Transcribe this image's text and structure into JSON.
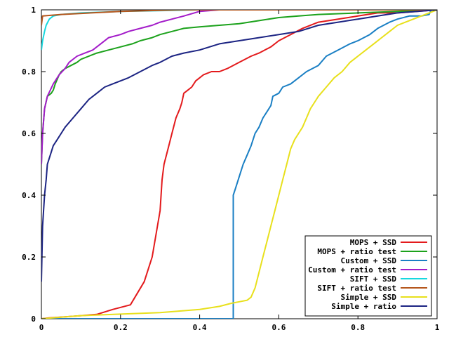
{
  "chart_data": {
    "type": "line",
    "title": "",
    "xlabel": "",
    "ylabel": "",
    "xlim": [
      0,
      1
    ],
    "ylim": [
      0,
      1
    ],
    "grid": false,
    "legend_position": "bottom-right",
    "x_ticks": [
      0,
      0.2,
      0.4,
      0.6,
      0.8,
      1
    ],
    "x_tick_labels": [
      "0",
      "0.2",
      "0.4",
      "0.6",
      "0.8",
      "1"
    ],
    "y_ticks": [
      0,
      0.2,
      0.4,
      0.6,
      0.8,
      1
    ],
    "y_tick_labels": [
      "0",
      "0.2",
      "0.4",
      "0.6",
      "0.8",
      "1"
    ],
    "series": [
      {
        "name": "MOPS + SSD",
        "color": "#e31a1c",
        "points": [
          [
            0,
            0
          ],
          [
            0.02,
            0.003
          ],
          [
            0.08,
            0.008
          ],
          [
            0.14,
            0.014
          ],
          [
            0.18,
            0.03
          ],
          [
            0.225,
            0.045
          ],
          [
            0.26,
            0.12
          ],
          [
            0.28,
            0.2
          ],
          [
            0.3,
            0.35
          ],
          [
            0.305,
            0.45
          ],
          [
            0.31,
            0.5
          ],
          [
            0.32,
            0.55
          ],
          [
            0.33,
            0.6
          ],
          [
            0.34,
            0.65
          ],
          [
            0.35,
            0.68
          ],
          [
            0.355,
            0.7
          ],
          [
            0.36,
            0.73
          ],
          [
            0.37,
            0.74
          ],
          [
            0.38,
            0.75
          ],
          [
            0.39,
            0.77
          ],
          [
            0.4,
            0.78
          ],
          [
            0.41,
            0.79
          ],
          [
            0.43,
            0.8
          ],
          [
            0.45,
            0.8
          ],
          [
            0.47,
            0.81
          ],
          [
            0.5,
            0.83
          ],
          [
            0.53,
            0.85
          ],
          [
            0.55,
            0.86
          ],
          [
            0.58,
            0.88
          ],
          [
            0.6,
            0.9
          ],
          [
            0.63,
            0.92
          ],
          [
            0.66,
            0.94
          ],
          [
            0.7,
            0.96
          ],
          [
            0.75,
            0.97
          ],
          [
            0.8,
            0.98
          ],
          [
            0.85,
            0.99
          ],
          [
            0.9,
            0.99
          ],
          [
            0.95,
            0.995
          ],
          [
            1,
            1
          ]
        ]
      },
      {
        "name": "MOPS + ratio test",
        "color": "#1ca21c",
        "points": [
          [
            0,
            0.5
          ],
          [
            0.003,
            0.6
          ],
          [
            0.008,
            0.68
          ],
          [
            0.015,
            0.72
          ],
          [
            0.025,
            0.73
          ],
          [
            0.03,
            0.74
          ],
          [
            0.035,
            0.76
          ],
          [
            0.045,
            0.79
          ],
          [
            0.05,
            0.8
          ],
          [
            0.06,
            0.81
          ],
          [
            0.075,
            0.82
          ],
          [
            0.09,
            0.83
          ],
          [
            0.1,
            0.84
          ],
          [
            0.12,
            0.85
          ],
          [
            0.14,
            0.86
          ],
          [
            0.17,
            0.87
          ],
          [
            0.2,
            0.88
          ],
          [
            0.23,
            0.89
          ],
          [
            0.25,
            0.9
          ],
          [
            0.28,
            0.91
          ],
          [
            0.3,
            0.92
          ],
          [
            0.33,
            0.93
          ],
          [
            0.36,
            0.94
          ],
          [
            0.4,
            0.945
          ],
          [
            0.45,
            0.95
          ],
          [
            0.5,
            0.955
          ],
          [
            0.55,
            0.965
          ],
          [
            0.6,
            0.975
          ],
          [
            0.65,
            0.98
          ],
          [
            0.7,
            0.985
          ],
          [
            0.8,
            0.99
          ],
          [
            0.9,
            0.995
          ],
          [
            1,
            1
          ]
        ]
      },
      {
        "name": "Custom + SSD",
        "color": "#1a7fc4",
        "points": [
          [
            0,
            0
          ],
          [
            0.47,
            0
          ],
          [
            0.485,
            0
          ],
          [
            0.485,
            0.4
          ],
          [
            0.49,
            0.42
          ],
          [
            0.5,
            0.46
          ],
          [
            0.51,
            0.5
          ],
          [
            0.52,
            0.53
          ],
          [
            0.53,
            0.56
          ],
          [
            0.54,
            0.6
          ],
          [
            0.55,
            0.62
          ],
          [
            0.56,
            0.65
          ],
          [
            0.57,
            0.67
          ],
          [
            0.58,
            0.69
          ],
          [
            0.585,
            0.72
          ],
          [
            0.6,
            0.73
          ],
          [
            0.61,
            0.75
          ],
          [
            0.63,
            0.76
          ],
          [
            0.65,
            0.78
          ],
          [
            0.67,
            0.8
          ],
          [
            0.7,
            0.82
          ],
          [
            0.72,
            0.85
          ],
          [
            0.75,
            0.87
          ],
          [
            0.78,
            0.89
          ],
          [
            0.8,
            0.9
          ],
          [
            0.83,
            0.92
          ],
          [
            0.85,
            0.94
          ],
          [
            0.88,
            0.96
          ],
          [
            0.9,
            0.97
          ],
          [
            0.93,
            0.98
          ],
          [
            0.96,
            0.98
          ],
          [
            0.98,
            0.985
          ],
          [
            0.985,
            1
          ],
          [
            1,
            1
          ]
        ]
      },
      {
        "name": "Custom + ratio test",
        "color": "#a31cc9",
        "points": [
          [
            0,
            0.5
          ],
          [
            0.003,
            0.6
          ],
          [
            0.008,
            0.68
          ],
          [
            0.015,
            0.72
          ],
          [
            0.03,
            0.76
          ],
          [
            0.045,
            0.79
          ],
          [
            0.06,
            0.81
          ],
          [
            0.07,
            0.83
          ],
          [
            0.09,
            0.85
          ],
          [
            0.11,
            0.86
          ],
          [
            0.13,
            0.87
          ],
          [
            0.15,
            0.89
          ],
          [
            0.17,
            0.91
          ],
          [
            0.2,
            0.92
          ],
          [
            0.22,
            0.93
          ],
          [
            0.25,
            0.94
          ],
          [
            0.28,
            0.95
          ],
          [
            0.3,
            0.96
          ],
          [
            0.33,
            0.97
          ],
          [
            0.36,
            0.98
          ],
          [
            0.4,
            0.995
          ],
          [
            0.45,
            1
          ],
          [
            1,
            1
          ]
        ]
      },
      {
        "name": "SIFT + SSD",
        "color": "#17d8df",
        "points": [
          [
            0,
            0.87
          ],
          [
            0.003,
            0.9
          ],
          [
            0.008,
            0.93
          ],
          [
            0.012,
            0.95
          ],
          [
            0.02,
            0.97
          ],
          [
            0.03,
            0.98
          ],
          [
            0.05,
            0.985
          ],
          [
            0.1,
            0.99
          ],
          [
            0.2,
            0.995
          ],
          [
            0.4,
            1
          ],
          [
            1,
            1
          ]
        ]
      },
      {
        "name": "SIFT + ratio test",
        "color": "#b5561c",
        "points": [
          [
            0,
            0.95
          ],
          [
            0.003,
            0.98
          ],
          [
            0.05,
            0.985
          ],
          [
            0.2,
            0.995
          ],
          [
            0.35,
            1
          ],
          [
            1,
            1
          ]
        ]
      },
      {
        "name": "Simple + SSD",
        "color": "#e8e01c",
        "points": [
          [
            0,
            0
          ],
          [
            0.05,
            0.005
          ],
          [
            0.1,
            0.01
          ],
          [
            0.2,
            0.015
          ],
          [
            0.3,
            0.02
          ],
          [
            0.35,
            0.025
          ],
          [
            0.4,
            0.03
          ],
          [
            0.45,
            0.04
          ],
          [
            0.48,
            0.05
          ],
          [
            0.5,
            0.055
          ],
          [
            0.52,
            0.06
          ],
          [
            0.53,
            0.07
          ],
          [
            0.54,
            0.1
          ],
          [
            0.55,
            0.15
          ],
          [
            0.56,
            0.2
          ],
          [
            0.57,
            0.25
          ],
          [
            0.58,
            0.3
          ],
          [
            0.59,
            0.35
          ],
          [
            0.6,
            0.4
          ],
          [
            0.61,
            0.45
          ],
          [
            0.62,
            0.5
          ],
          [
            0.63,
            0.55
          ],
          [
            0.64,
            0.58
          ],
          [
            0.65,
            0.6
          ],
          [
            0.66,
            0.62
          ],
          [
            0.67,
            0.65
          ],
          [
            0.68,
            0.68
          ],
          [
            0.69,
            0.7
          ],
          [
            0.7,
            0.72
          ],
          [
            0.72,
            0.75
          ],
          [
            0.74,
            0.78
          ],
          [
            0.76,
            0.8
          ],
          [
            0.78,
            0.83
          ],
          [
            0.8,
            0.85
          ],
          [
            0.82,
            0.87
          ],
          [
            0.84,
            0.89
          ],
          [
            0.86,
            0.91
          ],
          [
            0.88,
            0.93
          ],
          [
            0.9,
            0.95
          ],
          [
            0.92,
            0.96
          ],
          [
            0.94,
            0.97
          ],
          [
            0.96,
            0.98
          ],
          [
            0.98,
            0.99
          ],
          [
            1,
            1
          ]
        ]
      },
      {
        "name": "Simple + ratio",
        "color": "#1c2483",
        "points": [
          [
            0,
            0.12
          ],
          [
            0.003,
            0.3
          ],
          [
            0.008,
            0.4
          ],
          [
            0.012,
            0.45
          ],
          [
            0.015,
            0.5
          ],
          [
            0.02,
            0.52
          ],
          [
            0.025,
            0.54
          ],
          [
            0.03,
            0.56
          ],
          [
            0.04,
            0.58
          ],
          [
            0.05,
            0.6
          ],
          [
            0.06,
            0.62
          ],
          [
            0.08,
            0.65
          ],
          [
            0.1,
            0.68
          ],
          [
            0.12,
            0.71
          ],
          [
            0.14,
            0.73
          ],
          [
            0.16,
            0.75
          ],
          [
            0.18,
            0.76
          ],
          [
            0.2,
            0.77
          ],
          [
            0.22,
            0.78
          ],
          [
            0.25,
            0.8
          ],
          [
            0.28,
            0.82
          ],
          [
            0.3,
            0.83
          ],
          [
            0.33,
            0.85
          ],
          [
            0.36,
            0.86
          ],
          [
            0.4,
            0.87
          ],
          [
            0.45,
            0.89
          ],
          [
            0.5,
            0.9
          ],
          [
            0.55,
            0.91
          ],
          [
            0.6,
            0.92
          ],
          [
            0.65,
            0.93
          ],
          [
            0.7,
            0.95
          ],
          [
            0.75,
            0.96
          ],
          [
            0.8,
            0.97
          ],
          [
            0.85,
            0.98
          ],
          [
            0.9,
            0.99
          ],
          [
            0.95,
            0.995
          ],
          [
            1,
            1
          ]
        ]
      }
    ]
  }
}
